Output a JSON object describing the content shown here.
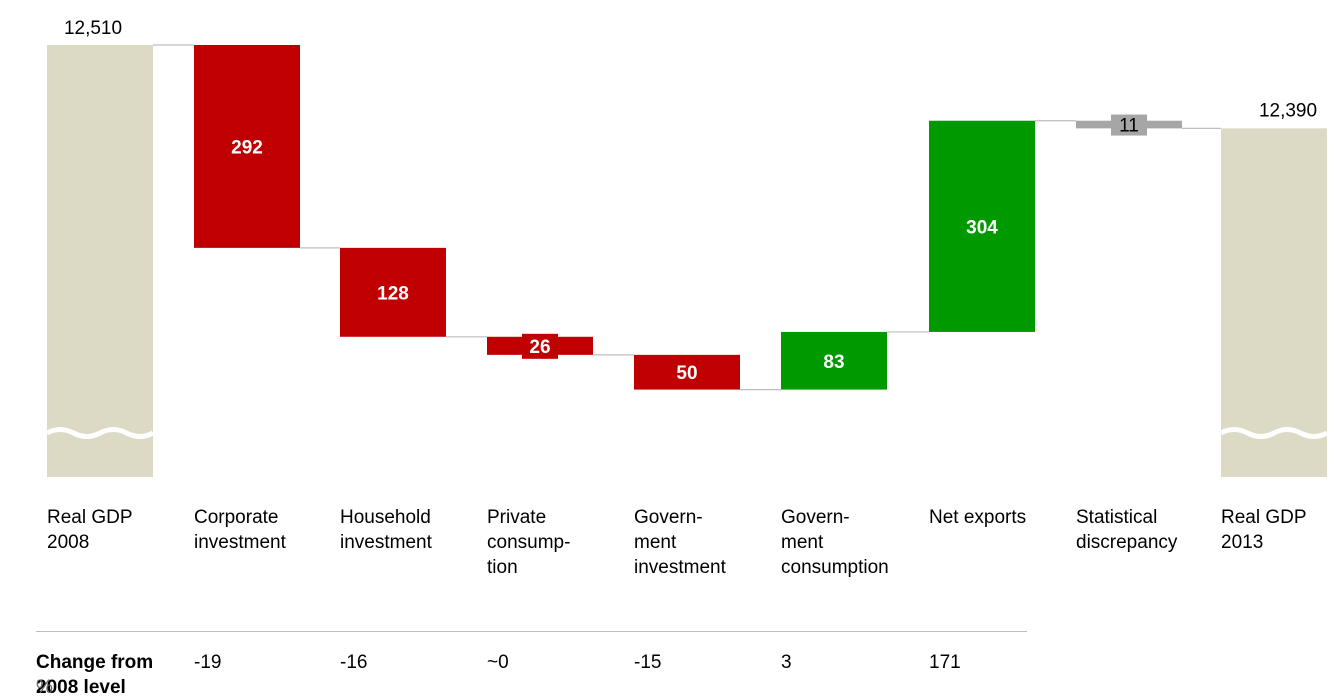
{
  "chart_data": {
    "type": "waterfall",
    "start": {
      "label": "Real GDP\n2008",
      "value": 12510,
      "value_label": "12,510"
    },
    "end": {
      "label": "Real GDP\n2013",
      "value": 12390,
      "value_label": "12,390"
    },
    "steps": [
      {
        "label": "Corporate\ninvestment",
        "delta": -292,
        "value_label": "292"
      },
      {
        "label": "Household\ninvestment",
        "delta": -128,
        "value_label": "128"
      },
      {
        "label": "Private\nconsump-\ntion",
        "delta": -26,
        "value_label": "26"
      },
      {
        "label": "Govern-\nment\ninvestment",
        "delta": -50,
        "value_label": "50"
      },
      {
        "label": "Govern-\nment\nconsumption",
        "delta": 83,
        "value_label": "83"
      },
      {
        "label": "Net exports",
        "delta": 304,
        "value_label": "304"
      },
      {
        "label": "Statistical\ndiscrepancy",
        "delta": -11,
        "value_label": "11"
      }
    ],
    "axis_break": true,
    "colors": {
      "total": "#dcd9c5",
      "decrease": "#c00000",
      "increase": "#009900",
      "discrepancy": "#a6a6a6",
      "connector": "#bdbdbd"
    },
    "change_row": {
      "title": "Change from\n2008 level",
      "unit": "%",
      "values": [
        "-19",
        "-16",
        "~0",
        "-15",
        "3",
        "171"
      ]
    }
  }
}
